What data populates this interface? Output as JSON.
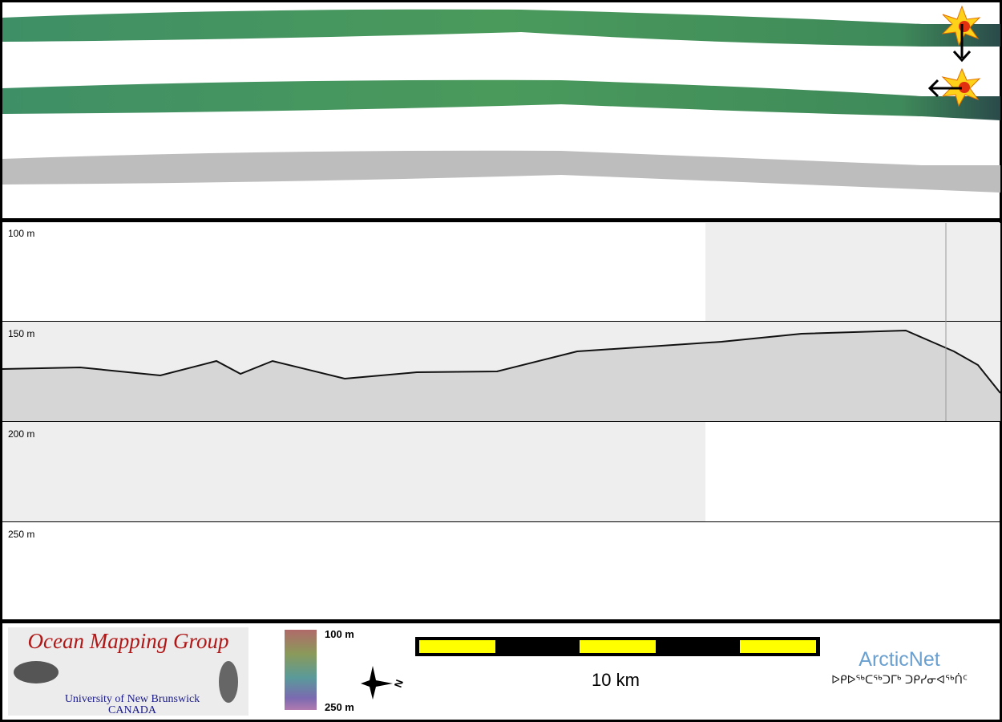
{
  "profile": {
    "depth_labels": [
      "100 m",
      "150 m",
      "200 m",
      "250 m"
    ]
  },
  "footer": {
    "logo": {
      "title": "Ocean Mapping Group",
      "university": "University of New Brunswick",
      "country": "CANADA"
    },
    "colorbar": {
      "top": "100 m",
      "bottom": "250 m"
    },
    "compass": "N",
    "scale_bar": "10 km",
    "partner": {
      "name": "ArcticNet",
      "syllabics": "ᐅᑭᐅᖅᑕᖅᑐᒥᒃ ᑐᑭᓯᓂᐊᖅᑏᑦ"
    }
  }
}
